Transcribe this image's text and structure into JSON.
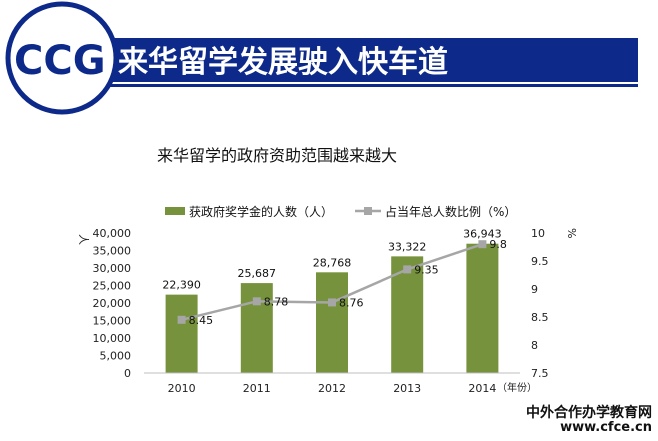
{
  "header": {
    "logo_text": "CCG",
    "banner_title": "来华留学发展驶入快车道",
    "colors": {
      "banner": "#0d2a8a",
      "logo_bg": "#ffffff",
      "logo_text": "#0d2a8a",
      "title_text": "#ffffff"
    }
  },
  "chart_data": {
    "type": "bar",
    "title": "来华留学的政府资助范围越来越大",
    "categories": [
      "2010",
      "2011",
      "2012",
      "2013",
      "2014"
    ],
    "xlabel": "（年份）",
    "y_unit_label": "人",
    "y2_unit_label": "%",
    "ylim": [
      0,
      40000
    ],
    "yticks": [
      0,
      5000,
      10000,
      15000,
      20000,
      25000,
      30000,
      35000,
      40000
    ],
    "ytick_labels": [
      "0",
      "5,000",
      "10,000",
      "15,000",
      "20,000",
      "25,000",
      "30,000",
      "35,000",
      "40,000"
    ],
    "y2lim": [
      7.5,
      10
    ],
    "y2ticks": [
      7.5,
      8,
      8.5,
      9,
      9.5,
      10
    ],
    "y2tick_labels": [
      "7.5",
      "8",
      "8.5",
      "9",
      "9.5",
      "10"
    ],
    "legend_position": "top",
    "series": [
      {
        "name": "获政府奖学金的人数（人）",
        "type": "bar",
        "axis": "left",
        "color": "#76923c",
        "values": [
          22390,
          25687,
          28768,
          33322,
          36943
        ],
        "labels": [
          "22,390",
          "25,687",
          "28,768",
          "33,322",
          "36,943"
        ]
      },
      {
        "name": "占当年总人数比例（%）",
        "type": "line",
        "axis": "right",
        "color": "#a6a6a6",
        "values": [
          8.45,
          8.78,
          8.76,
          9.35,
          9.8
        ],
        "labels": [
          "8.45",
          "8.78",
          "8.76",
          "9.35",
          "9.8"
        ]
      }
    ]
  },
  "watermark": {
    "line1": "中外合作办学教育网",
    "line2": "www.cfce.cn"
  }
}
